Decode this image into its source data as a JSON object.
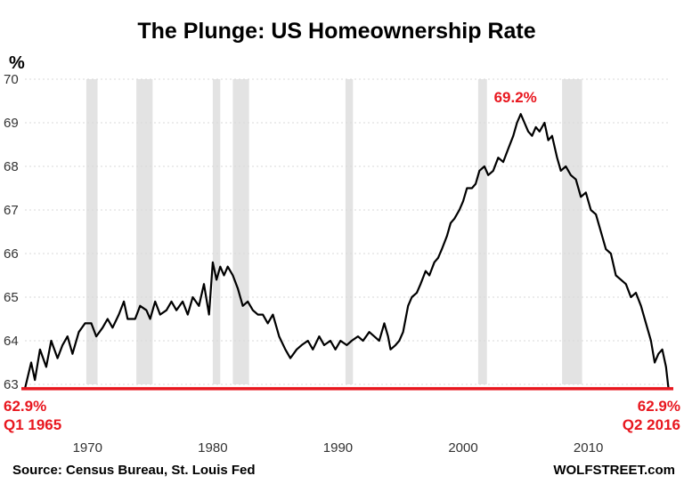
{
  "chart_data": {
    "type": "line",
    "title": "The Plunge: US Homeownership Rate",
    "ylabel": "%",
    "xlabel": "",
    "ylim": [
      63,
      70
    ],
    "xlim": [
      1965,
      2016.5
    ],
    "y_ticks": [
      "63",
      "64",
      "65",
      "66",
      "67",
      "68",
      "69",
      "70"
    ],
    "x_ticks": [
      "1970",
      "1980",
      "1990",
      "2000",
      "2010"
    ],
    "colors": {
      "line": "#000000",
      "baseline": "#e8171f",
      "recession": "#e3e3e3",
      "annotation": "#e8171f"
    },
    "recessions": [
      [
        1969.9,
        1970.8
      ],
      [
        1973.9,
        1975.2
      ],
      [
        1980.0,
        1980.6
      ],
      [
        1981.6,
        1982.9
      ],
      [
        1990.6,
        1991.2
      ],
      [
        2001.2,
        2001.9
      ],
      [
        2007.9,
        2009.5
      ]
    ],
    "series": [
      {
        "name": "US Homeownership Rate",
        "points": [
          [
            1965.0,
            62.9
          ],
          [
            1965.5,
            63.5
          ],
          [
            1965.8,
            63.1
          ],
          [
            1966.2,
            63.8
          ],
          [
            1966.7,
            63.4
          ],
          [
            1967.1,
            64.0
          ],
          [
            1967.6,
            63.6
          ],
          [
            1968.0,
            63.9
          ],
          [
            1968.4,
            64.1
          ],
          [
            1968.8,
            63.7
          ],
          [
            1969.3,
            64.2
          ],
          [
            1969.8,
            64.4
          ],
          [
            1970.3,
            64.4
          ],
          [
            1970.7,
            64.1
          ],
          [
            1971.2,
            64.3
          ],
          [
            1971.6,
            64.5
          ],
          [
            1972.0,
            64.3
          ],
          [
            1972.5,
            64.6
          ],
          [
            1972.9,
            64.9
          ],
          [
            1973.2,
            64.5
          ],
          [
            1973.8,
            64.5
          ],
          [
            1974.2,
            64.8
          ],
          [
            1974.7,
            64.7
          ],
          [
            1975.0,
            64.5
          ],
          [
            1975.4,
            64.9
          ],
          [
            1975.8,
            64.6
          ],
          [
            1976.3,
            64.7
          ],
          [
            1976.7,
            64.9
          ],
          [
            1977.1,
            64.7
          ],
          [
            1977.6,
            64.9
          ],
          [
            1978.0,
            64.6
          ],
          [
            1978.4,
            65.0
          ],
          [
            1978.9,
            64.8
          ],
          [
            1979.3,
            65.3
          ],
          [
            1979.7,
            64.6
          ],
          [
            1980.0,
            65.8
          ],
          [
            1980.3,
            65.4
          ],
          [
            1980.6,
            65.7
          ],
          [
            1980.9,
            65.5
          ],
          [
            1981.2,
            65.7
          ],
          [
            1981.6,
            65.5
          ],
          [
            1982.0,
            65.2
          ],
          [
            1982.4,
            64.8
          ],
          [
            1982.8,
            64.9
          ],
          [
            1983.2,
            64.7
          ],
          [
            1983.6,
            64.6
          ],
          [
            1984.0,
            64.6
          ],
          [
            1984.4,
            64.4
          ],
          [
            1984.8,
            64.6
          ],
          [
            1985.3,
            64.1
          ],
          [
            1985.8,
            63.8
          ],
          [
            1986.2,
            63.6
          ],
          [
            1986.7,
            63.8
          ],
          [
            1987.1,
            63.9
          ],
          [
            1987.6,
            64.0
          ],
          [
            1988.0,
            63.8
          ],
          [
            1988.5,
            64.1
          ],
          [
            1988.9,
            63.9
          ],
          [
            1989.4,
            64.0
          ],
          [
            1989.8,
            63.8
          ],
          [
            1990.2,
            64.0
          ],
          [
            1990.7,
            63.9
          ],
          [
            1991.1,
            64.0
          ],
          [
            1991.6,
            64.1
          ],
          [
            1992.0,
            64.0
          ],
          [
            1992.5,
            64.2
          ],
          [
            1992.9,
            64.1
          ],
          [
            1993.3,
            64.0
          ],
          [
            1993.7,
            64.4
          ],
          [
            1994.0,
            64.1
          ],
          [
            1994.2,
            63.8
          ],
          [
            1994.6,
            63.9
          ],
          [
            1994.9,
            64.0
          ],
          [
            1995.2,
            64.2
          ],
          [
            1995.6,
            64.8
          ],
          [
            1995.9,
            65.0
          ],
          [
            1996.3,
            65.1
          ],
          [
            1996.6,
            65.3
          ],
          [
            1997.0,
            65.6
          ],
          [
            1997.3,
            65.5
          ],
          [
            1997.7,
            65.8
          ],
          [
            1998.0,
            65.9
          ],
          [
            1998.3,
            66.1
          ],
          [
            1998.7,
            66.4
          ],
          [
            1999.0,
            66.7
          ],
          [
            1999.3,
            66.8
          ],
          [
            1999.7,
            67.0
          ],
          [
            2000.0,
            67.2
          ],
          [
            2000.3,
            67.5
          ],
          [
            2000.7,
            67.5
          ],
          [
            2001.0,
            67.6
          ],
          [
            2001.3,
            67.9
          ],
          [
            2001.7,
            68.0
          ],
          [
            2002.0,
            67.8
          ],
          [
            2002.4,
            67.9
          ],
          [
            2002.8,
            68.2
          ],
          [
            2003.2,
            68.1
          ],
          [
            2003.6,
            68.4
          ],
          [
            2004.0,
            68.7
          ],
          [
            2004.3,
            69.0
          ],
          [
            2004.6,
            69.2
          ],
          [
            2004.9,
            69.0
          ],
          [
            2005.2,
            68.8
          ],
          [
            2005.5,
            68.7
          ],
          [
            2005.8,
            68.9
          ],
          [
            2006.1,
            68.8
          ],
          [
            2006.5,
            69.0
          ],
          [
            2006.8,
            68.6
          ],
          [
            2007.1,
            68.7
          ],
          [
            2007.5,
            68.2
          ],
          [
            2007.8,
            67.9
          ],
          [
            2008.2,
            68.0
          ],
          [
            2008.6,
            67.8
          ],
          [
            2009.0,
            67.7
          ],
          [
            2009.4,
            67.3
          ],
          [
            2009.8,
            67.4
          ],
          [
            2010.2,
            67.0
          ],
          [
            2010.6,
            66.9
          ],
          [
            2011.0,
            66.5
          ],
          [
            2011.4,
            66.1
          ],
          [
            2011.8,
            66.0
          ],
          [
            2012.2,
            65.5
          ],
          [
            2012.6,
            65.4
          ],
          [
            2013.0,
            65.3
          ],
          [
            2013.4,
            65.0
          ],
          [
            2013.8,
            65.1
          ],
          [
            2014.2,
            64.8
          ],
          [
            2014.6,
            64.4
          ],
          [
            2015.0,
            64.0
          ],
          [
            2015.3,
            63.5
          ],
          [
            2015.6,
            63.7
          ],
          [
            2015.9,
            63.8
          ],
          [
            2016.2,
            63.4
          ],
          [
            2016.4,
            62.9
          ]
        ]
      }
    ],
    "baseline": {
      "value": 62.9,
      "label": "62.9% baseline"
    },
    "annotations": {
      "start_value": "62.9%",
      "start_date": "Q1 1965",
      "end_value": "62.9%",
      "end_date": "Q2 2016",
      "peak_value": "69.2%",
      "peak_point": [
        2004.6,
        69.2
      ]
    }
  },
  "footer": {
    "source": "Source: Census Bureau, St. Louis Fed",
    "brand": "WOLFSTREET.com"
  }
}
